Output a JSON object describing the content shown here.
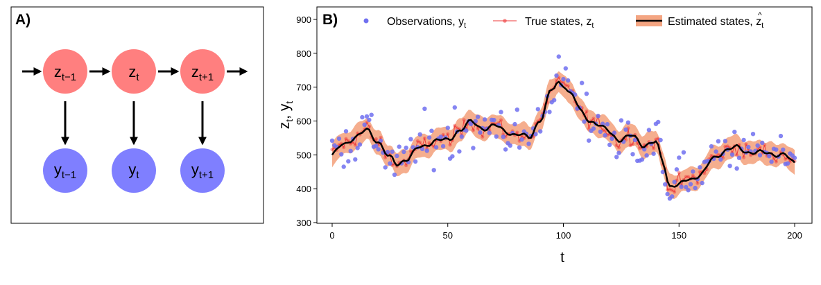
{
  "panel_a": {
    "label": "A)",
    "colors": {
      "state": "#ff7f7f",
      "obs": "#7f7fff",
      "arrow": "#000000",
      "frame": "#000000"
    },
    "states": [
      {
        "base": "z",
        "sub": "t−1"
      },
      {
        "base": "z",
        "sub": "t"
      },
      {
        "base": "z",
        "sub": "t+1"
      }
    ],
    "observations": [
      {
        "base": "y",
        "sub": "t−1"
      },
      {
        "base": "y",
        "sub": "t"
      },
      {
        "base": "y",
        "sub": "t+1"
      }
    ]
  },
  "chart_data": {
    "type": "line",
    "panel_label": "B)",
    "xlabel": "t",
    "ylabel": {
      "base1": "z",
      "sub1": "t",
      "sep": ", ",
      "base2": "y",
      "sub2": "t"
    },
    "xlim": [
      0,
      200
    ],
    "ylim": [
      300,
      920
    ],
    "xticks": [
      0,
      50,
      100,
      150,
      200
    ],
    "yticks": [
      300,
      400,
      500,
      600,
      700,
      800,
      900
    ],
    "grid": false,
    "legend_position": "top",
    "legend": [
      {
        "key": "obs",
        "label": "Observations, ",
        "math_base": "y",
        "math_sub": "t",
        "hat": false
      },
      {
        "key": "true",
        "label": "True states, ",
        "math_base": "z",
        "math_sub": "t",
        "hat": false
      },
      {
        "key": "est",
        "label": "Estimated states, ",
        "math_base": "z",
        "math_sub": "t",
        "hat": true
      }
    ],
    "colors": {
      "obs": "#7070f0",
      "true": "#ee3a3a",
      "est_line": "#000000",
      "est_band": "#f4a582"
    },
    "estimated_knots": {
      "x": [
        0,
        5,
        10,
        15,
        20,
        25,
        28,
        32,
        38,
        45,
        50,
        55,
        60,
        65,
        70,
        75,
        80,
        85,
        90,
        95,
        98,
        100,
        103,
        108,
        112,
        118,
        125,
        130,
        135,
        140,
        143,
        146,
        150,
        155,
        160,
        165,
        170,
        175,
        180,
        185,
        190,
        195,
        200
      ],
      "y": [
        500,
        530,
        555,
        570,
        540,
        490,
        470,
        490,
        520,
        545,
        540,
        575,
        595,
        580,
        585,
        570,
        560,
        550,
        605,
        690,
        715,
        710,
        680,
        625,
        600,
        575,
        545,
        555,
        530,
        535,
        480,
        410,
        410,
        430,
        445,
        490,
        515,
        520,
        510,
        505,
        505,
        500,
        475
      ]
    },
    "band_halfwidth": 33,
    "true_states_points": 201,
    "observation_points": 201
  }
}
